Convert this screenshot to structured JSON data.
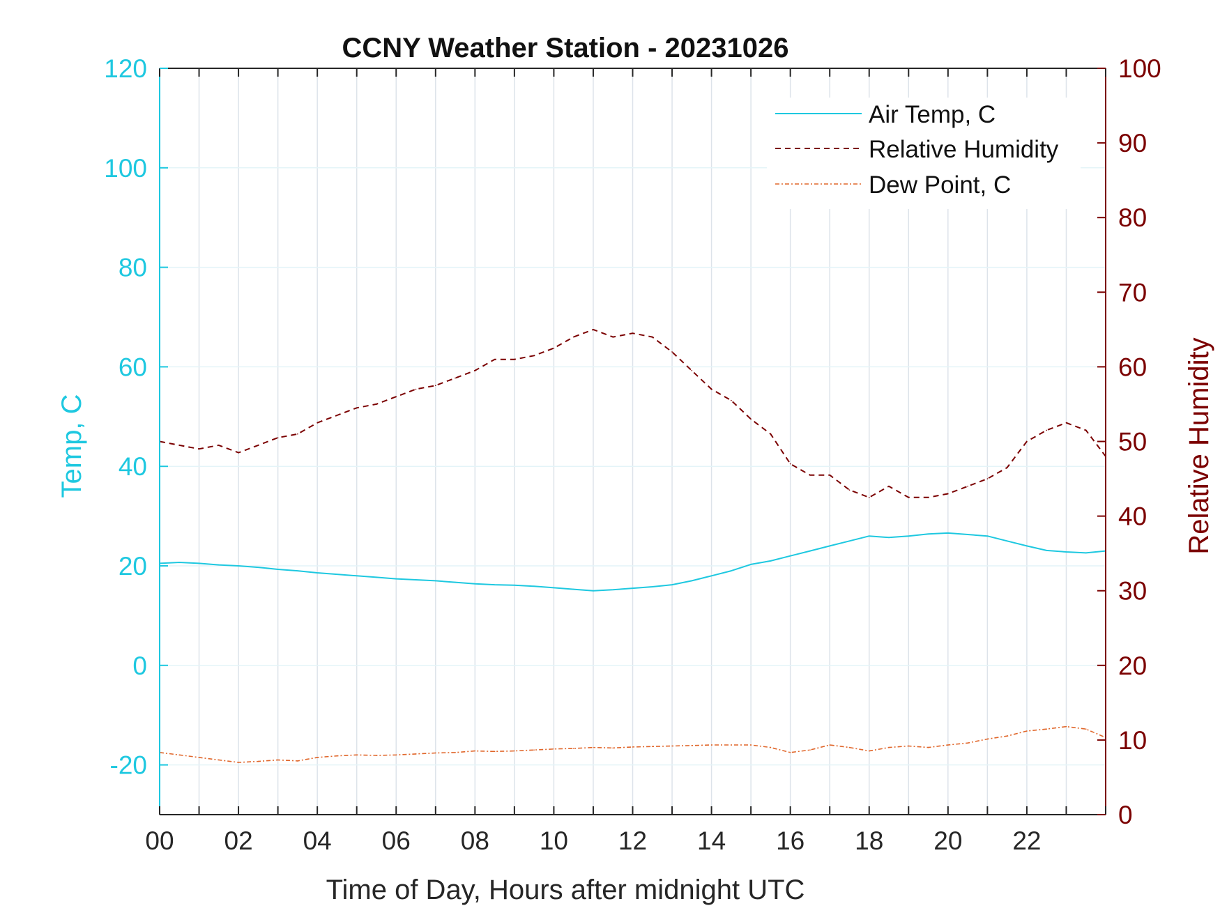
{
  "chart_data": {
    "type": "line",
    "title": "CCNY Weather Station - 20231026",
    "xlabel": "Time of Day, Hours after midnight UTC",
    "ylabel_left": "Temp, C",
    "ylabel_right": "Relative Humidity",
    "xlim": [
      0,
      24
    ],
    "ylim_left": [
      -30,
      120
    ],
    "ylim_right": [
      0,
      100
    ],
    "x_ticks": [
      0,
      2,
      4,
      6,
      8,
      10,
      12,
      14,
      16,
      18,
      20,
      22
    ],
    "x_tick_labels": [
      "00",
      "02",
      "04",
      "06",
      "08",
      "10",
      "12",
      "14",
      "16",
      "18",
      "20",
      "22"
    ],
    "y_left_ticks": [
      -20,
      0,
      20,
      40,
      60,
      80,
      100,
      120
    ],
    "y_left_tick_labels": [
      "-20",
      "0",
      "20",
      "40",
      "60",
      "80",
      "100",
      "120"
    ],
    "y_right_ticks": [
      0,
      10,
      20,
      30,
      40,
      50,
      60,
      70,
      80,
      90,
      100
    ],
    "y_right_tick_labels": [
      "0",
      "10",
      "20",
      "30",
      "40",
      "50",
      "60",
      "70",
      "80",
      "90",
      "100"
    ],
    "grid": "vertical hourly lines, horizontal lines at left-axis ticks",
    "legend_position": "top-right",
    "colors": {
      "temp": "#1ec8e0",
      "humidity": "#7b0000",
      "dewpoint": "#e0662a",
      "grid": "#dde3ea",
      "axis_dark": "#262626"
    },
    "series": [
      {
        "name": "Air Temp, C",
        "axis": "left",
        "style": "solid",
        "x": [
          0,
          0.5,
          1,
          1.5,
          2,
          2.5,
          3,
          3.5,
          4,
          4.5,
          5,
          5.5,
          6,
          6.5,
          7,
          7.5,
          8,
          8.5,
          9,
          9.5,
          10,
          10.5,
          11,
          11.5,
          12,
          12.5,
          13,
          13.5,
          14,
          14.5,
          15,
          15.5,
          16,
          16.5,
          17,
          17.5,
          18,
          18.5,
          19,
          19.5,
          20,
          20.5,
          21,
          21.5,
          22,
          22.5,
          23,
          23.5,
          24
        ],
        "values": [
          20.5,
          20.7,
          20.5,
          20.2,
          20.0,
          19.7,
          19.3,
          19.0,
          18.6,
          18.3,
          18.0,
          17.7,
          17.4,
          17.2,
          17.0,
          16.7,
          16.4,
          16.2,
          16.1,
          15.9,
          15.6,
          15.3,
          15.0,
          15.2,
          15.5,
          15.8,
          16.2,
          17.0,
          18.0,
          19.0,
          20.3,
          21.0,
          22.0,
          23.0,
          24.0,
          25.0,
          26.0,
          25.7,
          26.0,
          26.4,
          26.6,
          26.3,
          26.0,
          25.0,
          24.0,
          23.1,
          22.8,
          22.6,
          23.0
        ]
      },
      {
        "name": "Relative Humidity",
        "axis": "right",
        "style": "dashed",
        "x": [
          0,
          0.5,
          1,
          1.5,
          2,
          2.5,
          3,
          3.5,
          4,
          4.5,
          5,
          5.5,
          6,
          6.5,
          7,
          7.5,
          8,
          8.5,
          9,
          9.5,
          10,
          10.5,
          11,
          11.5,
          12,
          12.5,
          13,
          13.5,
          14,
          14.5,
          15,
          15.5,
          16,
          16.5,
          17,
          17.5,
          18,
          18.5,
          19,
          19.5,
          20,
          20.5,
          21,
          21.5,
          22,
          22.5,
          23,
          23.5,
          24
        ],
        "values": [
          50,
          49.5,
          49,
          49.5,
          48.5,
          49.5,
          50.5,
          51,
          52.5,
          53.5,
          54.5,
          55,
          56,
          57,
          57.5,
          58.5,
          59.5,
          61,
          61,
          61.5,
          62.5,
          64,
          65,
          64,
          64.5,
          64,
          62,
          59.5,
          57,
          55.5,
          53,
          51,
          47,
          45.5,
          45.5,
          43.5,
          42.5,
          44,
          42.5,
          42.5,
          43,
          44,
          45,
          46.5,
          50,
          51.5,
          52.5,
          51.5,
          48
        ]
      },
      {
        "name": "Dew Point, C",
        "axis": "left",
        "style": "dash-dot",
        "x": [
          0,
          0.5,
          1,
          1.5,
          2,
          2.5,
          3,
          3.5,
          4,
          4.5,
          5,
          5.5,
          6,
          6.5,
          7,
          7.5,
          8,
          8.5,
          9,
          9.5,
          10,
          10.5,
          11,
          11.5,
          12,
          12.5,
          13,
          13.5,
          14,
          14.5,
          15,
          15.5,
          16,
          16.5,
          17,
          17.5,
          18,
          18.5,
          19,
          19.5,
          20,
          20.5,
          21,
          21.5,
          22,
          22.5,
          23,
          23.5,
          24
        ],
        "values": [
          -17.5,
          -18,
          -18.5,
          -19,
          -19.5,
          -19.3,
          -19,
          -19.2,
          -18.5,
          -18.2,
          -18,
          -18.1,
          -18,
          -17.8,
          -17.6,
          -17.5,
          -17.2,
          -17.3,
          -17.2,
          -17.0,
          -16.8,
          -16.7,
          -16.5,
          -16.6,
          -16.4,
          -16.3,
          -16.2,
          -16.1,
          -16.0,
          -16.0,
          -16.0,
          -16.5,
          -17.5,
          -17.0,
          -16.0,
          -16.5,
          -17.2,
          -16.5,
          -16.2,
          -16.5,
          -16.0,
          -15.6,
          -14.8,
          -14.2,
          -13.2,
          -12.8,
          -12.3,
          -12.8,
          -14.5
        ]
      }
    ]
  }
}
